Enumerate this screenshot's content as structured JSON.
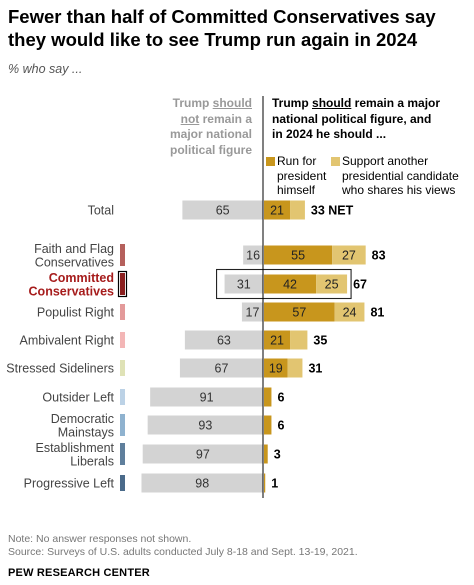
{
  "title": "Fewer than half of Committed Conservatives say they would like to see Trump run again in 2024",
  "subtitle": "% who say ...",
  "left_header": {
    "line1_pre": "Trump ",
    "line1_u": "should",
    "line2_u": "not",
    "line2_post": " remain a",
    "line3": "major national",
    "line4": "political figure"
  },
  "right_header": {
    "line1_pre": "Trump ",
    "line1_u": "should",
    "line1_post": " remain a major",
    "line2": "national political figure, and",
    "line3": "in 2024 he should ..."
  },
  "legend": [
    {
      "lines": [
        "Run for",
        "president",
        "himself"
      ],
      "color": "#c8961d"
    },
    {
      "lines": [
        "Support another",
        "presidential candidate",
        "who shares his views"
      ],
      "color": "#e2c571"
    }
  ],
  "colors": {
    "not_remain": "#d3d3d3",
    "run": "#c8961d",
    "support": "#e2c571",
    "highlight_text": "#a61c1c",
    "axis": "#000000"
  },
  "chart_data": {
    "type": "bar",
    "categories": [
      "Total",
      "Faith and Flag Conservatives",
      "Committed Conservatives",
      "Populist Right",
      "Ambivalent Right",
      "Stressed Sideliners",
      "Outsider Left",
      "Democratic Mainstays",
      "Establishment Liberals",
      "Progressive Left"
    ],
    "category_lines": [
      [
        "Total"
      ],
      [
        "Faith and Flag",
        "Conservatives"
      ],
      [
        "Committed",
        "Conservatives"
      ],
      [
        "Populist Right"
      ],
      [
        "Ambivalent Right"
      ],
      [
        "Stressed Sideliners"
      ],
      [
        "Outsider Left"
      ],
      [
        "Democratic",
        "Mainstays"
      ],
      [
        "Establishment",
        "Liberals"
      ],
      [
        "Progressive Left"
      ]
    ],
    "typology_colors": [
      null,
      "#b5605c",
      "#8b1f1f",
      "#e39a9a",
      "#f3b6b6",
      "#dfe2b6",
      "#bcd2e6",
      "#8fb2cf",
      "#5f7f9c",
      "#4a6a8a"
    ],
    "highlight_index": 2,
    "series": [
      {
        "name": "Trump should not remain a major national political figure",
        "values": [
          65,
          16,
          31,
          17,
          63,
          67,
          91,
          93,
          97,
          98
        ]
      },
      {
        "name": "Run for president himself",
        "values": [
          21,
          55,
          42,
          57,
          21,
          19,
          null,
          null,
          null,
          null
        ]
      },
      {
        "name": "Support another presidential candidate who shares his views",
        "values": [
          12,
          27,
          25,
          24,
          14,
          12,
          null,
          null,
          null,
          null
        ]
      }
    ],
    "labels": {
      "not_remain": [
        "65",
        "16",
        "31",
        "17",
        "63",
        "67",
        "91",
        "93",
        "97",
        "98"
      ],
      "run": [
        "21",
        "55",
        "42",
        "57",
        "21",
        "19",
        "",
        "",
        "",
        ""
      ],
      "support": [
        "",
        "27",
        "25",
        "24",
        "",
        "",
        "",
        "",
        "",
        ""
      ],
      "net": [
        "33 NET",
        "83",
        "67",
        "81",
        "35",
        "31",
        "6",
        "6",
        "3",
        "1"
      ]
    }
  },
  "note": "Note: No answer responses not shown.",
  "source": "Source: Surveys of U.S. adults conducted July 8-18 and Sept. 13-19, 2021.",
  "brand": "PEW RESEARCH CENTER"
}
